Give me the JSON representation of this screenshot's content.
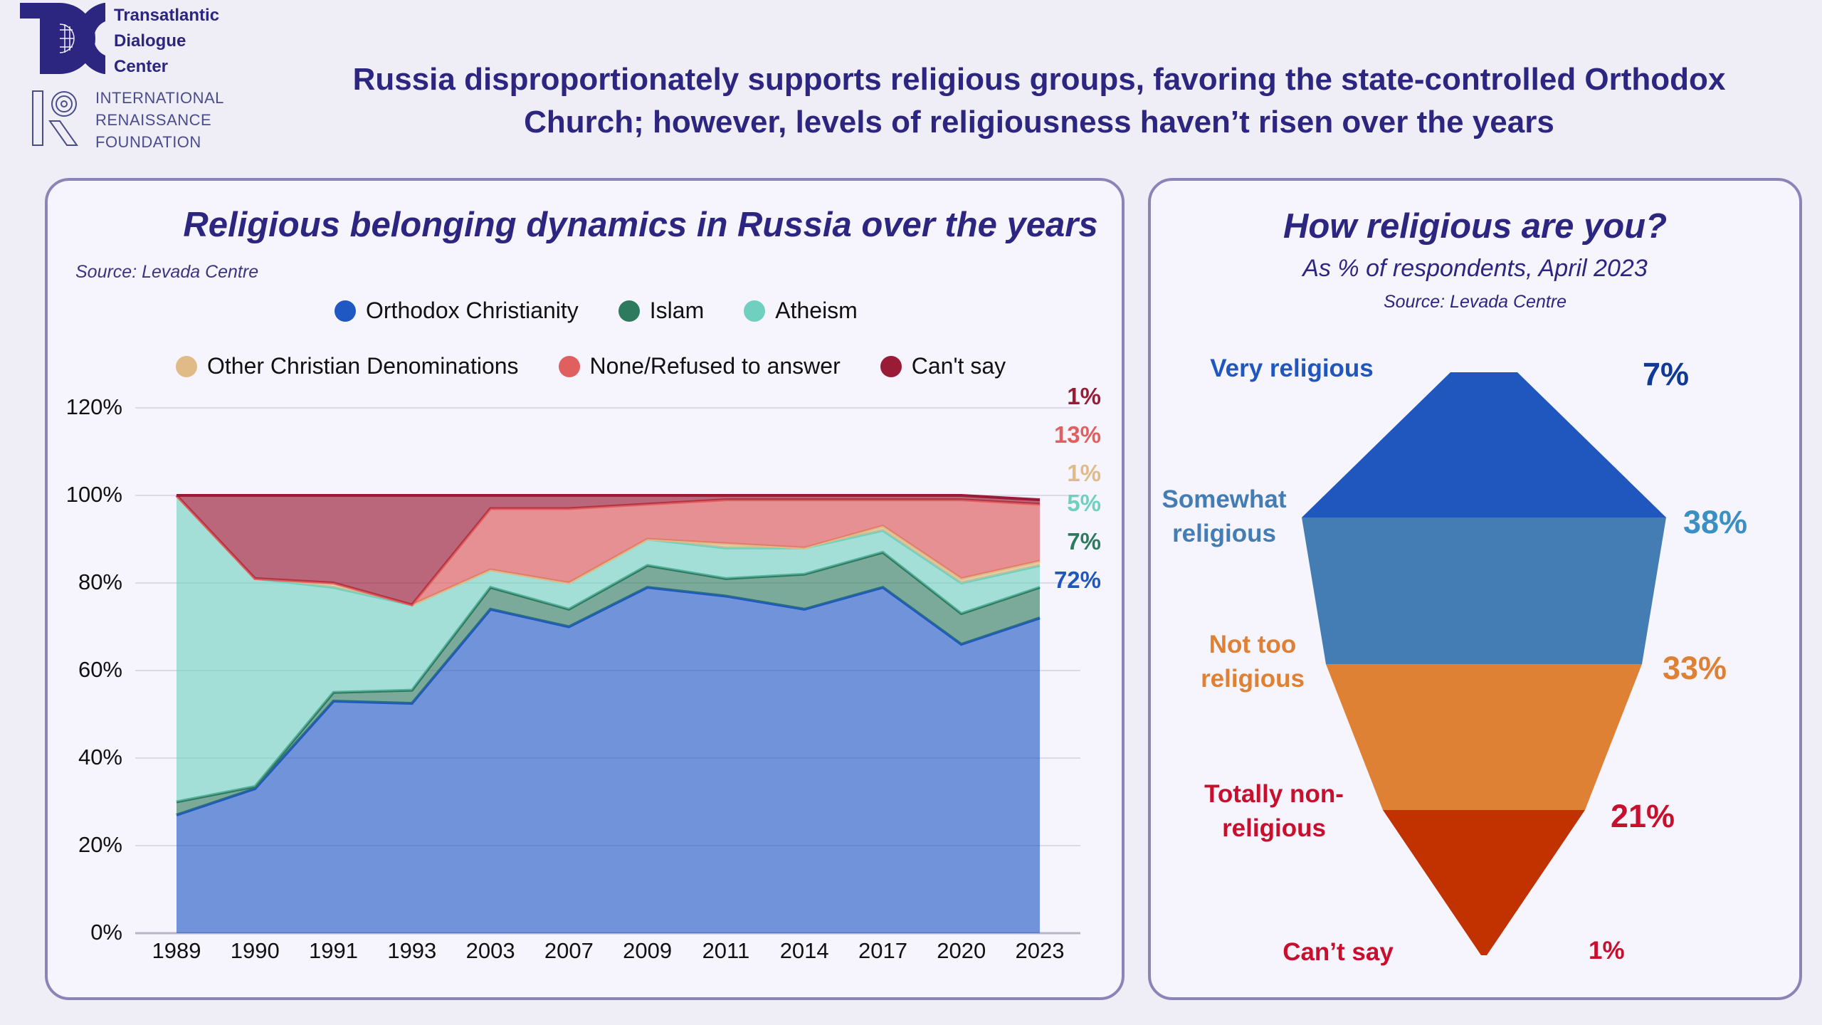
{
  "logos": {
    "tdc": {
      "lines": [
        "Transatlantic",
        "Dialogue",
        "Center"
      ]
    },
    "irf": {
      "lines": [
        "INTERNATIONAL",
        "RENAISSANCE",
        "FOUNDATION"
      ]
    }
  },
  "main_title": {
    "line1": "Russia disproportionately supports religious groups, favoring the state-controlled Orthodox",
    "line2": "Church; however, levels of religiousness haven’t risen over the years"
  },
  "colors": {
    "orthodox": "#1f57c3",
    "islam": "#2e7a5e",
    "atheism": "#6fd0c0",
    "other_christian": "#e0bb88",
    "none_refused": "#e06060",
    "cant_say": "#9a1b35",
    "very_religious": "#2057be",
    "somewhat_religious": "#447db3",
    "not_too_religious": "#df8135",
    "totally_non_religious": "#c23100"
  },
  "chart_data": [
    {
      "type": "area",
      "stacked": true,
      "title": "Religious belonging dynamics in Russia over the years",
      "source": "Source: Levada Centre",
      "xlabel": "",
      "ylabel": "",
      "categories": [
        "1989",
        "1990",
        "1991",
        "1993",
        "2003",
        "2007",
        "2009",
        "2011",
        "2014",
        "2017",
        "2020",
        "2023"
      ],
      "y_ticks": [
        "0%",
        "20%",
        "40%",
        "60%",
        "80%",
        "100%",
        "120%"
      ],
      "ylim": [
        0,
        120
      ],
      "grid": true,
      "legend_position": "top",
      "series": [
        {
          "name": "Orthodox Christianity",
          "key": "orthodox",
          "values": [
            27,
            33,
            53,
            52.5,
            74,
            70,
            79,
            77,
            74,
            79,
            66,
            72
          ]
        },
        {
          "name": "Islam",
          "key": "islam",
          "values": [
            3,
            0.5,
            2,
            3,
            5,
            4,
            5,
            4,
            8,
            8,
            7,
            7
          ]
        },
        {
          "name": "Atheism",
          "key": "atheism",
          "values": [
            70,
            47.5,
            24,
            19.5,
            4,
            6,
            6,
            7,
            6,
            5,
            7,
            5
          ]
        },
        {
          "name": "Other Christian Denominations",
          "key": "other_christian",
          "values": [
            0,
            0,
            1,
            0,
            0,
            0,
            0,
            1,
            0,
            1,
            1,
            1
          ]
        },
        {
          "name": "None/Refused to answer",
          "key": "none_refused",
          "values": [
            0,
            0,
            0,
            0,
            14,
            17,
            8,
            10,
            11,
            6,
            18,
            13
          ]
        },
        {
          "name": "Can't say",
          "key": "cant_say",
          "values": [
            0,
            19,
            20,
            25,
            3,
            3,
            2,
            1,
            1,
            1,
            1,
            1
          ]
        }
      ],
      "end_labels": [
        {
          "key": "cant_say",
          "text": "1%"
        },
        {
          "key": "none_refused",
          "text": "13%"
        },
        {
          "key": "other_christian",
          "text": "1%"
        },
        {
          "key": "atheism",
          "text": "5%"
        },
        {
          "key": "islam",
          "text": "7%"
        },
        {
          "key": "orthodox",
          "text": "72%"
        }
      ]
    },
    {
      "type": "funnel",
      "title": "How religious are you?",
      "subtitle": "As % of respondents, April 2023",
      "source": "Source: Levada Centre",
      "categories": [
        "Very religious",
        "Somewhat religious",
        "Not too religious",
        "Totally non-religious",
        "Can’t say"
      ],
      "values": [
        7,
        38,
        33,
        21,
        1
      ],
      "value_labels": [
        "7%",
        "38%",
        "33%",
        "21%",
        "1%"
      ],
      "label_lines": [
        [
          "Very religious"
        ],
        [
          "Somewhat",
          "religious"
        ],
        [
          "Not too",
          "religious"
        ],
        [
          "Totally non-",
          "religious"
        ],
        [
          "Can’t say"
        ]
      ]
    }
  ]
}
